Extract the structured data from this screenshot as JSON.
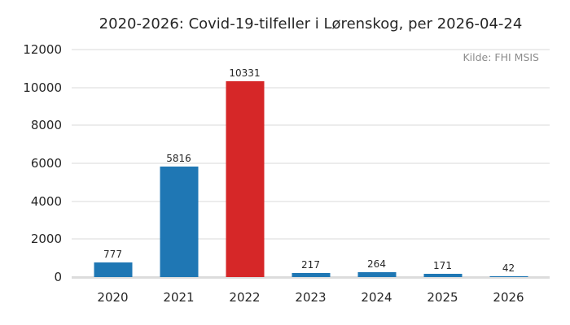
{
  "colors": {
    "background": "#ffffff",
    "bar_default": "#1f77b4",
    "bar_highlight": "#d62728",
    "gridline": "#ececec",
    "zero_line": "#dcdcdc",
    "text": "#262626",
    "source_text": "#8c8c8c"
  },
  "chart_data": {
    "type": "bar",
    "title": "2020-2026: Covid-19-tilfeller i Lørenskog, per 2026-04-24",
    "source_note": "Kilde: FHI MSIS",
    "categories": [
      "2020",
      "2021",
      "2022",
      "2023",
      "2024",
      "2025",
      "2026"
    ],
    "values": [
      777,
      5816,
      10331,
      217,
      264,
      171,
      42
    ],
    "bar_colors": [
      "#1f77b4",
      "#1f77b4",
      "#d62728",
      "#1f77b4",
      "#1f77b4",
      "#1f77b4",
      "#1f77b4"
    ],
    "highlight_category": "2022",
    "value_labels": [
      "777",
      "5816",
      "10331",
      "217",
      "264",
      "171",
      "42"
    ],
    "xlabel": "",
    "ylabel": "",
    "ylim": [
      0,
      12000
    ],
    "yticks": [
      0,
      2000,
      4000,
      6000,
      8000,
      10000,
      12000
    ],
    "grid": "horizontal",
    "legend": "none"
  }
}
